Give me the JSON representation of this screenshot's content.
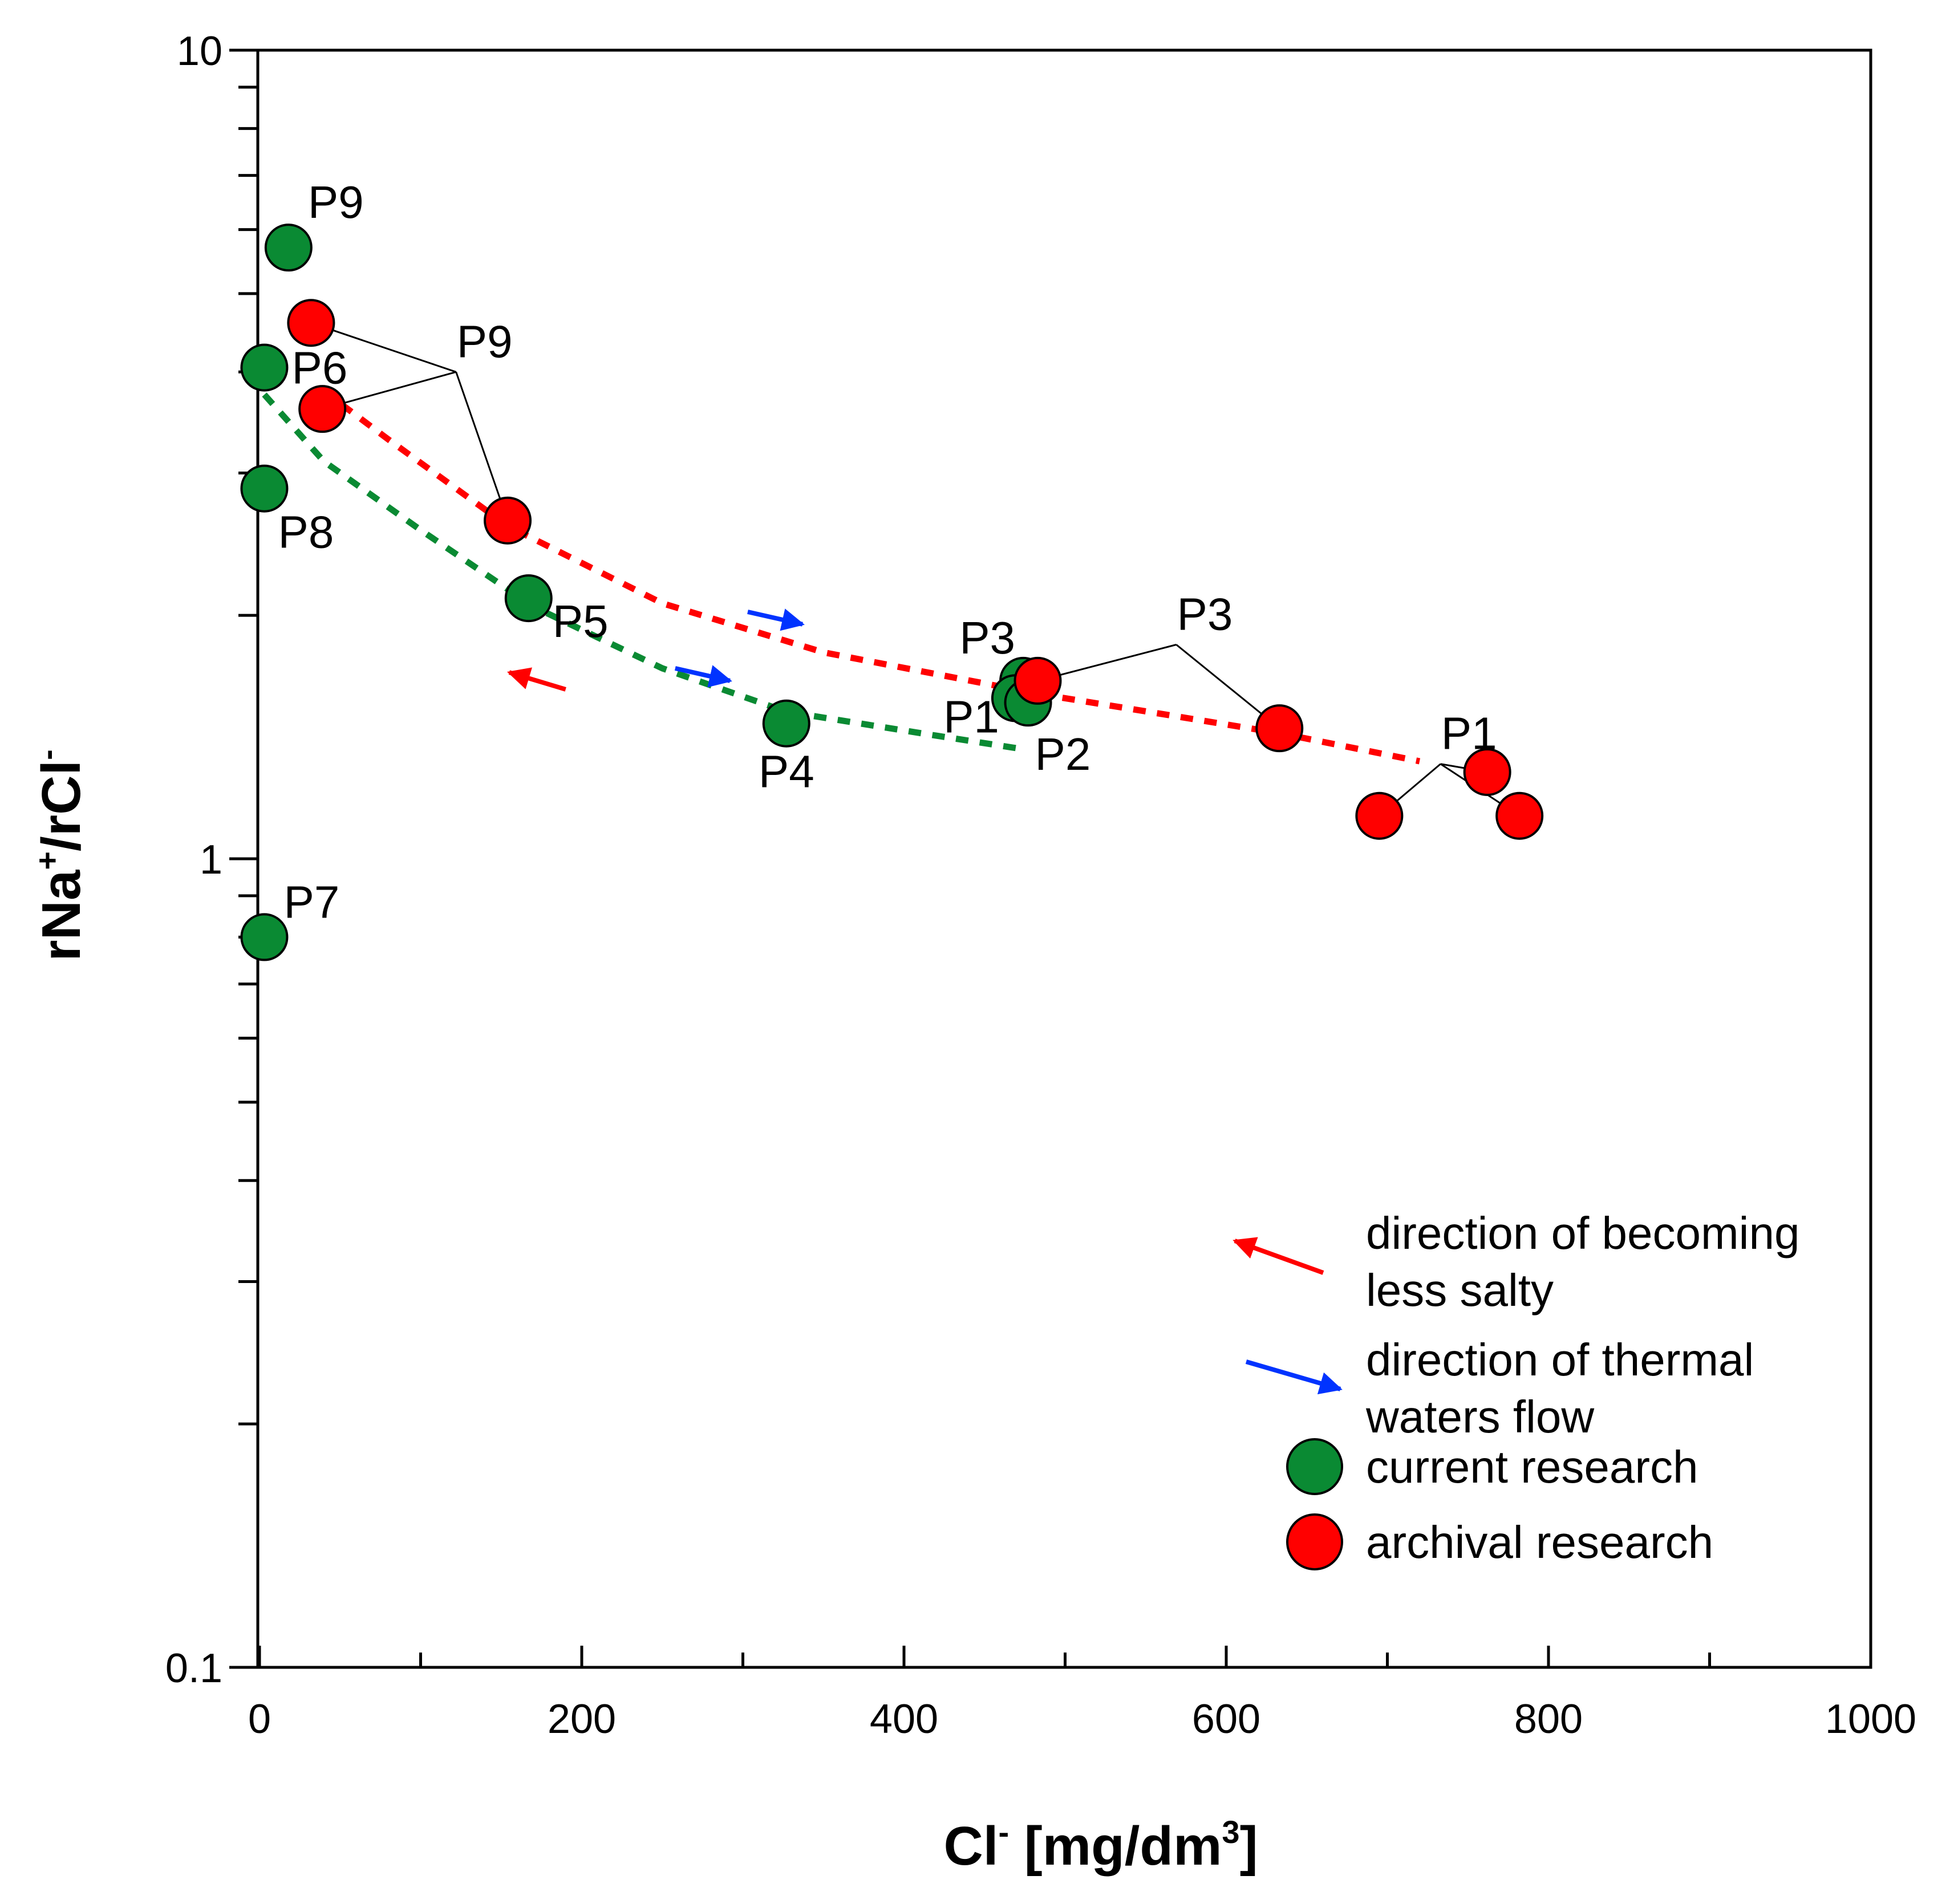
{
  "chart_data": {
    "type": "scatter",
    "title": "",
    "xlabel": {
      "base": "Cl",
      "sup": "-",
      "rest": " [mg/dm",
      "sup2": "3",
      "end": "]"
    },
    "ylabel": {
      "p1": "rNa",
      "sup1": "+",
      "p2": "/rCl",
      "sup2": "-"
    },
    "xlim": [
      0,
      1000
    ],
    "ylim": [
      0.1,
      10
    ],
    "yscale": "log",
    "x_ticks": [
      0,
      200,
      400,
      600,
      800,
      1000
    ],
    "x_tick_labels": [
      "0",
      "200",
      "400",
      "600",
      "800",
      "1000"
    ],
    "y_ticks": [
      0.1,
      1,
      10
    ],
    "y_tick_labels": [
      "0.1",
      "1",
      "10"
    ],
    "grid": false,
    "series": [
      {
        "name": "current research",
        "color": "#0a8a33",
        "points": [
          {
            "x": 18,
            "y": 5.7,
            "label": "P9"
          },
          {
            "x": 3,
            "y": 4.05,
            "label": "P6"
          },
          {
            "x": 3,
            "y": 2.87,
            "label": "P8"
          },
          {
            "x": 167,
            "y": 2.1,
            "label": "P5"
          },
          {
            "x": 327,
            "y": 1.47,
            "label": "P4"
          },
          {
            "x": 474,
            "y": 1.66,
            "label": "P3"
          },
          {
            "x": 469,
            "y": 1.58,
            "label": "P1"
          },
          {
            "x": 477,
            "y": 1.56,
            "label": "P2"
          },
          {
            "x": 3,
            "y": 0.8,
            "label": "P7"
          }
        ]
      },
      {
        "name": "archival research",
        "color": "#ff0000",
        "points": [
          {
            "x": 32,
            "y": 4.6
          },
          {
            "x": 39,
            "y": 3.6
          },
          {
            "x": 154,
            "y": 2.62
          },
          {
            "x": 483,
            "y": 1.66
          },
          {
            "x": 633,
            "y": 1.45
          },
          {
            "x": 762,
            "y": 1.28
          },
          {
            "x": 695,
            "y": 1.13
          },
          {
            "x": 782,
            "y": 1.13
          }
        ]
      }
    ],
    "group_labels": [
      {
        "text": "P9",
        "x": 122,
        "y": 4.0,
        "connects": [
          [
            32,
            4.6
          ],
          [
            39,
            3.6
          ],
          [
            154,
            2.62
          ]
        ]
      },
      {
        "text": "P3",
        "x": 569,
        "y": 1.84,
        "connects": [
          [
            483,
            1.66
          ],
          [
            633,
            1.45
          ]
        ]
      },
      {
        "text": "P1",
        "x": 733,
        "y": 1.31,
        "connects": [
          [
            695,
            1.13
          ],
          [
            762,
            1.28
          ],
          [
            782,
            1.13
          ]
        ]
      }
    ],
    "trend_lines": [
      {
        "name": "archival trend",
        "color": "#ff0000",
        "style": "dotted",
        "points": [
          [
            39,
            3.8
          ],
          [
            80,
            3.3
          ],
          [
            154,
            2.58
          ],
          [
            250,
            2.07
          ],
          [
            350,
            1.8
          ],
          [
            483,
            1.6
          ],
          [
            633,
            1.43
          ],
          [
            720,
            1.32
          ]
        ]
      },
      {
        "name": "current trend",
        "color": "#0a8a33",
        "style": "dotted",
        "points": [
          [
            3,
            3.75
          ],
          [
            40,
            3.1
          ],
          [
            100,
            2.55
          ],
          [
            170,
            2.05
          ],
          [
            250,
            1.72
          ],
          [
            327,
            1.52
          ],
          [
            420,
            1.42
          ],
          [
            470,
            1.37
          ]
        ]
      }
    ],
    "flow_arrows": [
      {
        "kind": "salty",
        "color": "#ff0000",
        "from": [
          190,
          1.62
        ],
        "to": [
          155,
          1.7
        ]
      },
      {
        "kind": "thermal",
        "color": "#0033ff",
        "from": [
          258,
          1.72
        ],
        "to": [
          292,
          1.66
        ]
      },
      {
        "kind": "thermal",
        "color": "#0033ff",
        "from": [
          303,
          2.02
        ],
        "to": [
          337,
          1.95
        ]
      }
    ],
    "legend": {
      "placement": "bottom-right",
      "entries": [
        {
          "kind": "arrow",
          "color": "#ff0000",
          "text_lines": [
            "direction of becoming",
            "less salty"
          ]
        },
        {
          "kind": "arrow",
          "color": "#0033ff",
          "text_lines": [
            "direction of thermal",
            "waters flow"
          ]
        },
        {
          "kind": "marker",
          "color": "#0a8a33",
          "text_lines": [
            "current research"
          ]
        },
        {
          "kind": "marker",
          "color": "#ff0000",
          "text_lines": [
            "archival research"
          ]
        }
      ]
    }
  }
}
